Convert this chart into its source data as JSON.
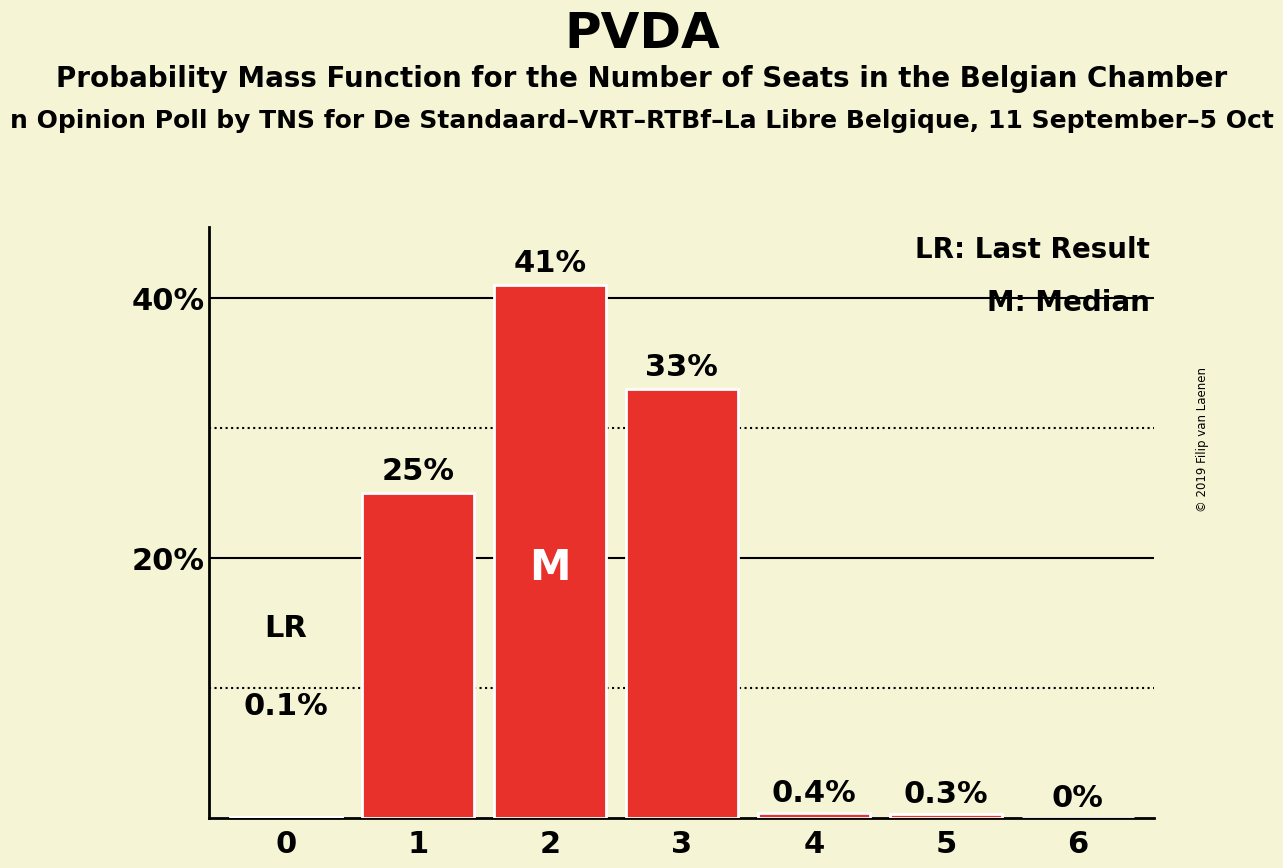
{
  "title": "PVDA",
  "subtitle": "Probability Mass Function for the Number of Seats in the Belgian Chamber",
  "sub_subtitle": "n Opinion Poll by TNS for De Standaard–VRT–RTBf–La Libre Belgique, 11 September–5 Oct",
  "copyright": "© 2019 Filip van Laenen",
  "categories": [
    0,
    1,
    2,
    3,
    4,
    5,
    6
  ],
  "values": [
    0.001,
    0.25,
    0.41,
    0.33,
    0.004,
    0.003,
    0.0
  ],
  "bar_labels": [
    "",
    "25%",
    "41%",
    "33%",
    "0.4%",
    "0.3%",
    "0%"
  ],
  "bar_color": "#E8312A",
  "bar_edge_color": "#FFFFFF",
  "background_color": "#F5F5D5",
  "median_bar": 2,
  "median_label": "M",
  "lr_label": "LR",
  "lr_value_label": "0.1%",
  "legend_lr": "LR: Last Result",
  "legend_m": "M: Median",
  "ytick_labels": [
    "",
    "20%",
    "40%"
  ],
  "ylim": [
    0,
    0.455
  ],
  "dotted_lines": [
    0.1,
    0.3
  ],
  "title_fontsize": 36,
  "subtitle_fontsize": 20,
  "sub_subtitle_fontsize": 18,
  "bar_label_fontsize": 22,
  "ytick_fontsize": 22,
  "xtick_fontsize": 22,
  "legend_fontsize": 20,
  "median_label_fontsize": 30
}
